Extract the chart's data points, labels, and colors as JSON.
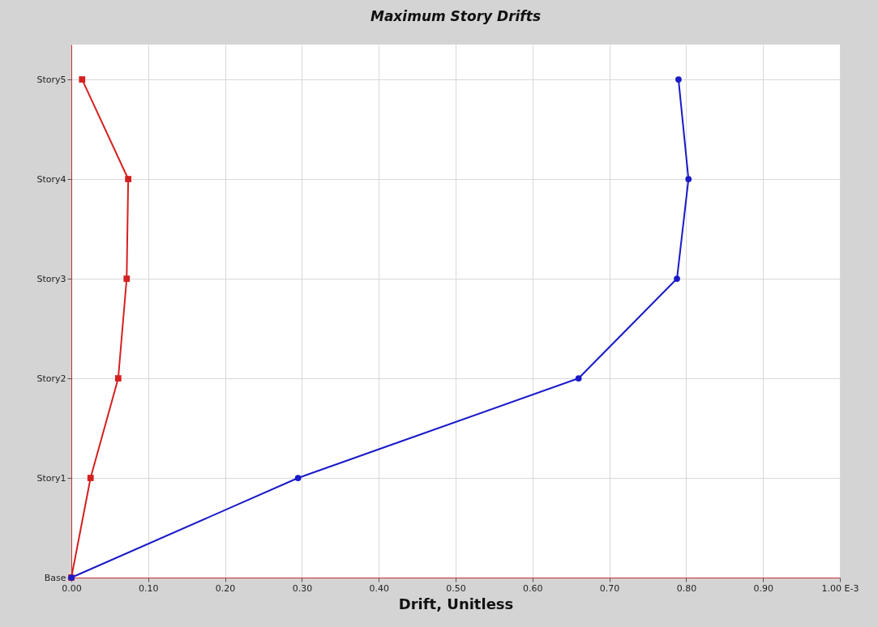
{
  "chart_data": {
    "type": "line",
    "orientation": "horizontal",
    "title": "Maximum Story Drifts",
    "xlabel": "Drift, Unitless",
    "categories": [
      "Story5",
      "Story4",
      "Story3",
      "Story2",
      "Story1",
      "Base"
    ],
    "xlim": [
      0,
      1
    ],
    "xticks": [
      {
        "value": 0,
        "label": "0.00"
      },
      {
        "value": 0.1,
        "label": "0.10"
      },
      {
        "value": 0.2,
        "label": "0.20"
      },
      {
        "value": 0.3,
        "label": "0.30"
      },
      {
        "value": 0.4,
        "label": "0.40"
      },
      {
        "value": 0.5,
        "label": "0.50"
      },
      {
        "value": 0.6,
        "label": "0.60"
      },
      {
        "value": 0.7,
        "label": "0.70"
      },
      {
        "value": 0.8,
        "label": "0.80"
      },
      {
        "value": 0.9,
        "label": "0.90"
      },
      {
        "value": 1,
        "label": "1.00 E-3"
      }
    ],
    "grid": true,
    "series": [
      {
        "color": "#d42020",
        "marker": "square",
        "values": [
          0.014,
          0.074,
          0.072,
          0.061,
          0.025,
          0
        ]
      },
      {
        "color": "#1a1ac8",
        "marker": "circle",
        "values": [
          0.79,
          0.803,
          0.788,
          0.66,
          0.295,
          0
        ]
      }
    ]
  }
}
